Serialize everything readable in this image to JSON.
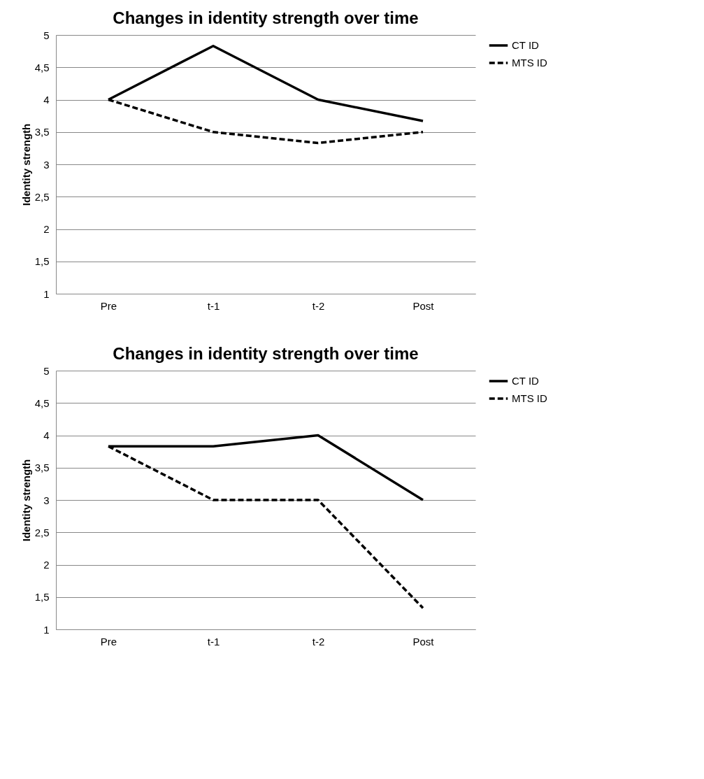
{
  "chart_data": [
    {
      "type": "line",
      "title": "Changes in identity strength over time",
      "ylabel": "Identity strength",
      "categories": [
        "Pre",
        "t-1",
        "t-2",
        "Post"
      ],
      "series": [
        {
          "name": "CT ID",
          "color": "#000000",
          "line_style": "solid",
          "values": [
            4,
            4.83,
            4,
            3.67
          ]
        },
        {
          "name": "MTS ID",
          "color": "#000000",
          "line_style": "dashed",
          "values": [
            4,
            3.5,
            3.33,
            3.5
          ]
        }
      ],
      "ylim": [
        1,
        5
      ],
      "yticks": [
        1,
        {
          "value": 1.5,
          "label": "1,5"
        },
        2,
        {
          "value": 2.5,
          "label": "2,5"
        },
        3,
        {
          "value": 3.5,
          "label": "3,5"
        },
        4,
        {
          "value": 4.5,
          "label": "4,5"
        },
        5
      ],
      "grid": "y",
      "legend": "right"
    },
    {
      "type": "line",
      "title": "Changes in identity strength over time",
      "ylabel": "Identity strength",
      "categories": [
        "Pre",
        "t-1",
        "t-2",
        "Post"
      ],
      "series": [
        {
          "name": "CT ID",
          "color": "#000000",
          "line_style": "solid",
          "values": [
            3.83,
            3.83,
            4,
            3
          ]
        },
        {
          "name": "MTS ID",
          "color": "#000000",
          "line_style": "dashed",
          "values": [
            3.83,
            3,
            3,
            1.33
          ]
        }
      ],
      "ylim": [
        1,
        5
      ],
      "yticks": [
        1,
        {
          "value": 1.5,
          "label": "1,5"
        },
        2,
        {
          "value": 2.5,
          "label": "2,5"
        },
        3,
        {
          "value": 3.5,
          "label": "3,5"
        },
        4,
        {
          "value": 4.5,
          "label": "4,5"
        },
        5
      ],
      "grid": "y",
      "legend": "right"
    }
  ]
}
